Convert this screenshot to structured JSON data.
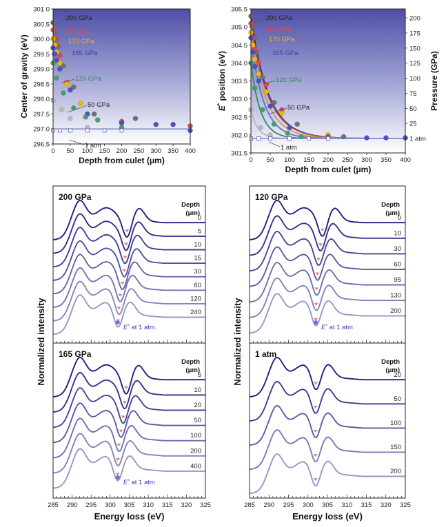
{
  "chart_data": [
    {
      "id": "cog",
      "type": "scatter",
      "xlabel": "Depth from culet (μm)",
      "ylabel": "Center of gravity (eV)",
      "xlim": [
        0,
        400
      ],
      "ylim": [
        296.5,
        301.0
      ],
      "xticks": [
        0,
        50,
        100,
        150,
        200,
        250,
        300,
        350,
        400
      ],
      "yticks": [
        296.5,
        297.0,
        297.5,
        298.0,
        298.5,
        299.0,
        299.5,
        300.0,
        300.5,
        301.0
      ],
      "ytick_labels": [
        "296.5",
        "297.0",
        "297.5",
        "298.0",
        "298.5",
        "299.0",
        "299.5",
        "300.0",
        "300.5",
        "301.0"
      ],
      "reference_line": 297.0,
      "series": [
        {
          "name": "200 GPa",
          "color": "#707070",
          "x": [
            0,
            5,
            10,
            15,
            30,
            60,
            120,
            240
          ],
          "y": [
            300.55,
            300.25,
            300.0,
            299.75,
            299.1,
            298.4,
            297.5,
            297.35
          ]
        },
        {
          "name": "185 GPa",
          "color": "#e04a4a",
          "x": [
            0,
            5,
            10,
            20,
            40,
            80,
            200,
            400
          ],
          "y": [
            300.3,
            300.05,
            299.8,
            299.45,
            298.55,
            297.85,
            297.25,
            297.1
          ]
        },
        {
          "name": "170 GPa",
          "color": "#f0b800",
          "x": [
            0,
            5,
            10,
            20,
            40,
            80,
            200
          ],
          "y": [
            300.0,
            299.8,
            299.55,
            299.2,
            298.5,
            297.85,
            297.2
          ]
        },
        {
          "name": "165 GPa",
          "color": "#5050c0",
          "x": [
            0,
            5,
            10,
            20,
            50,
            100,
            200,
            300,
            350,
            400
          ],
          "y": [
            299.7,
            299.5,
            299.3,
            299.0,
            298.3,
            297.5,
            297.2,
            297.15,
            297.15,
            296.95
          ]
        },
        {
          "name": "120 GPa",
          "color": "#40a070",
          "x": [
            0,
            10,
            30,
            60,
            95,
            130,
            200
          ],
          "y": [
            299.2,
            298.7,
            298.2,
            297.7,
            297.4,
            297.3,
            297.05
          ]
        },
        {
          "name": "50 GPa",
          "color": "#b8b8b8",
          "x": [
            0,
            25,
            50,
            100
          ],
          "y": [
            297.95,
            297.65,
            297.35,
            297.05
          ]
        },
        {
          "name": "1 atm",
          "color": "#ffffff",
          "marker": "square",
          "x": [
            0,
            20,
            50,
            100,
            150,
            200
          ],
          "y": [
            296.95,
            296.95,
            296.95,
            296.95,
            296.95,
            296.95
          ]
        }
      ],
      "annotations": [
        {
          "text": "200 GPa",
          "color": "#222222"
        },
        {
          "text": "185 GPa",
          "color": "#e04a4a"
        },
        {
          "text": "170 GPa",
          "color": "#f0b800"
        },
        {
          "text": "165 GPa",
          "color": "#3a3ab8"
        },
        {
          "text": "120 GPa",
          "color": "#2e8b57"
        },
        {
          "text": "50 GPa",
          "color": "#222222"
        },
        {
          "text": "1 atm",
          "color": "#222222"
        }
      ]
    },
    {
      "id": "estar",
      "type": "scatter",
      "xlabel": "Depth from culet (μm)",
      "ylabel_prefix": "E",
      "ylabel_sup": "*",
      "ylabel_suffix": " position (eV)",
      "y2label": "Pressure (GPa)",
      "xlim": [
        0,
        400
      ],
      "ylim": [
        301.5,
        305.5
      ],
      "xticks": [
        0,
        50,
        100,
        150,
        200,
        250,
        300,
        350,
        400
      ],
      "yticks": [
        301.5,
        302.0,
        302.5,
        303.0,
        303.5,
        304.0,
        304.5,
        305.0,
        305.5
      ],
      "ytick_labels": [
        "301.5",
        "302.0",
        "302.5",
        "303.0",
        "303.5",
        "304.0",
        "304.5",
        "305.0",
        "305.5"
      ],
      "y2ticks": [
        0,
        25,
        50,
        75,
        100,
        125,
        150,
        175,
        200
      ],
      "y2_zero_label": "1 atm",
      "reference_line": 301.9,
      "series": [
        {
          "name": "200 GPa",
          "color": "#707070",
          "x": [
            0,
            5,
            10,
            15,
            30,
            60,
            120,
            240
          ],
          "y": [
            305.3,
            305.0,
            304.7,
            304.3,
            303.6,
            302.9,
            302.3,
            301.95
          ]
        },
        {
          "name": "185 GPa",
          "color": "#e04a4a",
          "x": [
            0,
            5,
            10,
            20,
            40,
            80,
            200,
            400
          ],
          "y": [
            305.1,
            304.7,
            304.4,
            304.0,
            303.4,
            302.7,
            302.0,
            301.92
          ]
        },
        {
          "name": "170 GPa",
          "color": "#f0b800",
          "x": [
            0,
            5,
            10,
            20,
            40,
            80,
            200
          ],
          "y": [
            304.85,
            304.5,
            304.1,
            303.7,
            303.2,
            302.6,
            302.0
          ]
        },
        {
          "name": "165 GPa",
          "color": "#5050c0",
          "x": [
            0,
            5,
            10,
            20,
            50,
            100,
            200,
            300,
            350,
            400
          ],
          "y": [
            304.7,
            304.3,
            303.9,
            303.5,
            302.8,
            302.2,
            301.95,
            301.92,
            301.92,
            301.92
          ]
        },
        {
          "name": "120 GPa",
          "color": "#40a070",
          "x": [
            0,
            10,
            30,
            60,
            95,
            130,
            200
          ],
          "y": [
            304.0,
            303.3,
            302.7,
            302.3,
            302.05,
            301.95,
            301.92
          ]
        },
        {
          "name": "50 GPa",
          "color": "#b8b8b8",
          "x": [
            0,
            25,
            50,
            100
          ],
          "y": [
            302.7,
            302.2,
            302.0,
            301.92
          ]
        },
        {
          "name": "1 atm",
          "color": "#ffffff",
          "marker": "square",
          "x": [
            0,
            20,
            50,
            100,
            150,
            200
          ],
          "y": [
            301.9,
            301.9,
            301.9,
            301.9,
            301.9,
            301.9
          ]
        }
      ],
      "fit_curves": [
        {
          "color": "#2a2a8a",
          "e0": 305.3,
          "decay": 45
        },
        {
          "color": "#b05050",
          "e0": 305.1,
          "decay": 45
        },
        {
          "color": "#c8a040",
          "e0": 304.85,
          "decay": 40
        },
        {
          "color": "#6a6ad0",
          "e0": 304.7,
          "decay": 33
        },
        {
          "color": "#2e8b57",
          "e0": 304.0,
          "decay": 25
        },
        {
          "color": "#b8b8b8",
          "e0": 302.7,
          "decay": 18
        }
      ],
      "annotations": [
        {
          "text": "200 GPa",
          "color": "#222222"
        },
        {
          "text": "185 GPa",
          "color": "#e04a4a"
        },
        {
          "text": "170 GPa",
          "color": "#f0b800"
        },
        {
          "text": "165 GPa",
          "color": "#3a3ab8"
        },
        {
          "text": "120 GPa",
          "color": "#2e8b57"
        },
        {
          "text": "50 GPa",
          "color": "#222222"
        },
        {
          "text": "1 atm",
          "color": "#222222"
        }
      ]
    },
    {
      "id": "spectra",
      "type": "line",
      "xlabel": "Energy loss (eV)",
      "ylabel": "Normalized intensity",
      "xlim": [
        285,
        325
      ],
      "xticks": [
        285,
        290,
        295,
        300,
        305,
        310,
        315,
        320,
        325
      ],
      "depth_header_line1": "Depth",
      "depth_header_line2": "(μm)",
      "marker_color": "#e87a7a",
      "estar_marker_color": "#7070d0",
      "estar_label_prefix": "E",
      "estar_label_sup": "*",
      "estar_label_suffix": " at 1 atm",
      "panels": [
        {
          "title": "200 GPa",
          "depths": [
            "0",
            "5",
            "10",
            "15",
            "30",
            "60",
            "120",
            "240"
          ],
          "dip_energy": [
            304.4,
            304.2,
            303.9,
            303.7,
            303.2,
            302.6,
            302.3,
            302.0
          ],
          "estar_label": true
        },
        {
          "title": "120 GPa",
          "depths": [
            "0",
            "10",
            "30",
            "60",
            "95",
            "130",
            "200"
          ],
          "dip_energy": [
            303.7,
            303.2,
            302.7,
            302.4,
            302.2,
            302.1,
            302.0
          ],
          "estar_label": true
        },
        {
          "title": "165 GPa",
          "depths": [
            "5",
            "10",
            "20",
            "50",
            "100",
            "200",
            "400"
          ],
          "dip_energy": [
            304.2,
            303.8,
            303.4,
            302.8,
            302.3,
            302.0,
            301.9
          ],
          "estar_label": true
        },
        {
          "title": "1 atm",
          "depths": [
            "20",
            "50",
            "100",
            "150",
            "200"
          ],
          "dip_energy": [
            302.0,
            301.9,
            301.9,
            301.9,
            301.9
          ],
          "estar_label": false
        }
      ]
    }
  ]
}
